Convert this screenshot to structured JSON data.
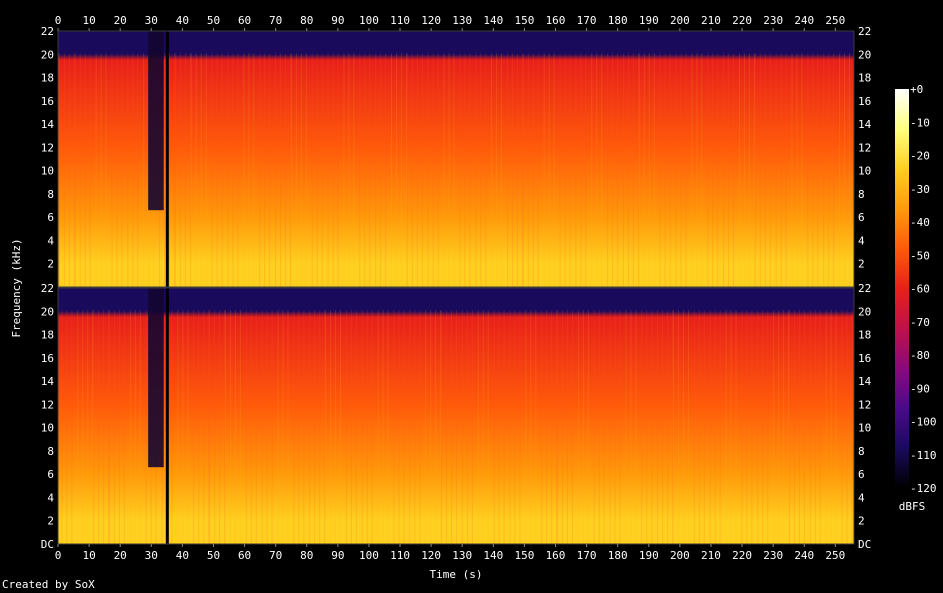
{
  "chart_data": {
    "type": "heatmap",
    "title": "",
    "xlabel": "Time (s)",
    "ylabel": "Frequency (kHz)",
    "x_range": [
      0,
      256
    ],
    "x_ticks": [
      0,
      10,
      20,
      30,
      40,
      50,
      60,
      70,
      80,
      90,
      100,
      110,
      120,
      130,
      140,
      150,
      160,
      170,
      180,
      190,
      200,
      210,
      220,
      230,
      240,
      250
    ],
    "y_range_khz": [
      0,
      22
    ],
    "y_ticks": [
      {
        "value": 0,
        "label": "DC"
      },
      {
        "value": 2,
        "label": "2"
      },
      {
        "value": 4,
        "label": "4"
      },
      {
        "value": 6,
        "label": "6"
      },
      {
        "value": 8,
        "label": "8"
      },
      {
        "value": 10,
        "label": "10"
      },
      {
        "value": 12,
        "label": "12"
      },
      {
        "value": 14,
        "label": "14"
      },
      {
        "value": 16,
        "label": "16"
      },
      {
        "value": 18,
        "label": "18"
      },
      {
        "value": 20,
        "label": "20"
      },
      {
        "value": 22,
        "label": "22"
      }
    ],
    "channels": [
      {
        "channel": 1,
        "description_level_db": {
          "below_2khz": -25,
          "2_to_6khz": -38,
          "6_to_12khz": -50,
          "12_to_20khz": -58,
          "above_20khz": -110
        },
        "quiet_segments_s": [
          [
            29,
            34
          ]
        ],
        "dropouts_s": [
          35
        ]
      },
      {
        "channel": 2,
        "description_level_db": {
          "below_2khz": -25,
          "2_to_6khz": -38,
          "6_to_12khz": -50,
          "12_to_20khz": -58,
          "above_20khz": -110
        },
        "quiet_segments_s": [
          [
            29,
            34
          ]
        ],
        "dropouts_s": [
          35
        ]
      }
    ],
    "colorbar": {
      "unit_label": "dBFS",
      "range": [
        -120,
        0
      ],
      "ticks": [
        {
          "value": 0,
          "label": "+0"
        },
        {
          "value": -10,
          "label": "-10"
        },
        {
          "value": -20,
          "label": "-20"
        },
        {
          "value": -30,
          "label": "-30"
        },
        {
          "value": -40,
          "label": "-40"
        },
        {
          "value": -50,
          "label": "-50"
        },
        {
          "value": -60,
          "label": "-60"
        },
        {
          "value": -70,
          "label": "-70"
        },
        {
          "value": -80,
          "label": "-80"
        },
        {
          "value": -90,
          "label": "-90"
        },
        {
          "value": -100,
          "label": "-100"
        },
        {
          "value": -110,
          "label": "-110"
        },
        {
          "value": -120,
          "label": "-120"
        }
      ],
      "colors": [
        "#000000",
        "#1a0a5c",
        "#4a0a8a",
        "#8a0a7a",
        "#c0104a",
        "#e8201a",
        "#ff5a0a",
        "#ff9a0a",
        "#ffd020",
        "#ffff80",
        "#ffffff"
      ]
    }
  },
  "footer": {
    "credit": "Created by SoX"
  }
}
